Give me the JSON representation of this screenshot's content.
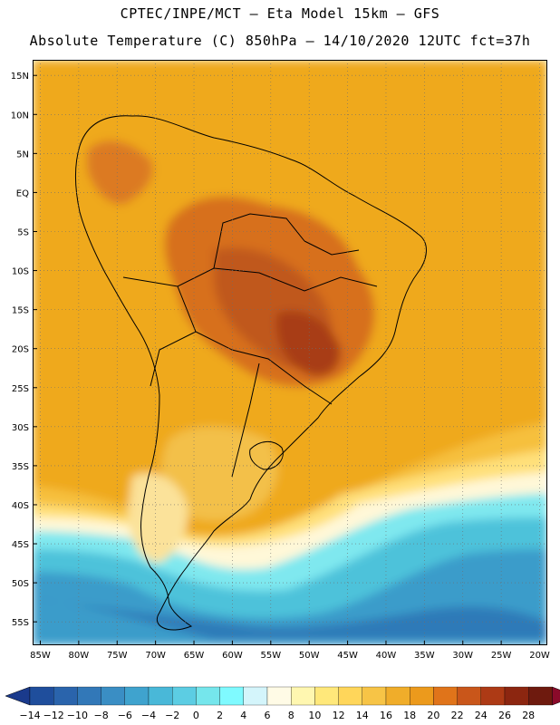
{
  "title_line1": "CPTEC/INPE/MCT –  Eta Model 15km – GFS",
  "title_line2": "Absolute Temperature (C) 850hPa – 14/10/2020 12UTC fct=37h",
  "map": {
    "lon_range": [
      -86,
      -19
    ],
    "lat_range": [
      -58,
      17
    ],
    "lat_ticks": [
      "15N",
      "10N",
      "5N",
      "EQ",
      "5S",
      "10S",
      "15S",
      "20S",
      "25S",
      "30S",
      "35S",
      "40S",
      "45S",
      "50S",
      "55S"
    ],
    "lat_values": [
      15,
      10,
      5,
      0,
      -5,
      -10,
      -15,
      -20,
      -25,
      -30,
      -35,
      -40,
      -45,
      -50,
      -55
    ],
    "lon_ticks": [
      "85W",
      "80W",
      "75W",
      "70W",
      "65W",
      "60W",
      "55W",
      "50W",
      "45W",
      "40W",
      "35W",
      "30W",
      "25W",
      "20W"
    ],
    "lon_values": [
      -85,
      -80,
      -75,
      -70,
      -65,
      -60,
      -55,
      -50,
      -45,
      -40,
      -35,
      -30,
      -25,
      -20
    ],
    "grid": "dotted",
    "field": "Absolute Temperature (C) 850hPa"
  },
  "colorbar": {
    "labels": [
      "-14",
      "-12",
      "-10",
      "-8",
      "-6",
      "-4",
      "-2",
      "0",
      "2",
      "4",
      "6",
      "8",
      "10",
      "12",
      "14",
      "16",
      "18",
      "20",
      "22",
      "24",
      "26",
      "28"
    ],
    "colors": [
      "#1a3a8c",
      "#1f4e9c",
      "#2a64ac",
      "#3278b8",
      "#3a8ec4",
      "#3fa3ce",
      "#49b8d8",
      "#5ccde3",
      "#75e6ec",
      "#7ffaff",
      "#d4f5fb",
      "#fffbe6",
      "#fff7b0",
      "#ffe87a",
      "#ffd65a",
      "#f7c446",
      "#f0ad2a",
      "#ec9a1c",
      "#e0741a",
      "#c9561a",
      "#ad3a15",
      "#8c2610",
      "#6e1a0e",
      "#8a0a2a"
    ]
  }
}
